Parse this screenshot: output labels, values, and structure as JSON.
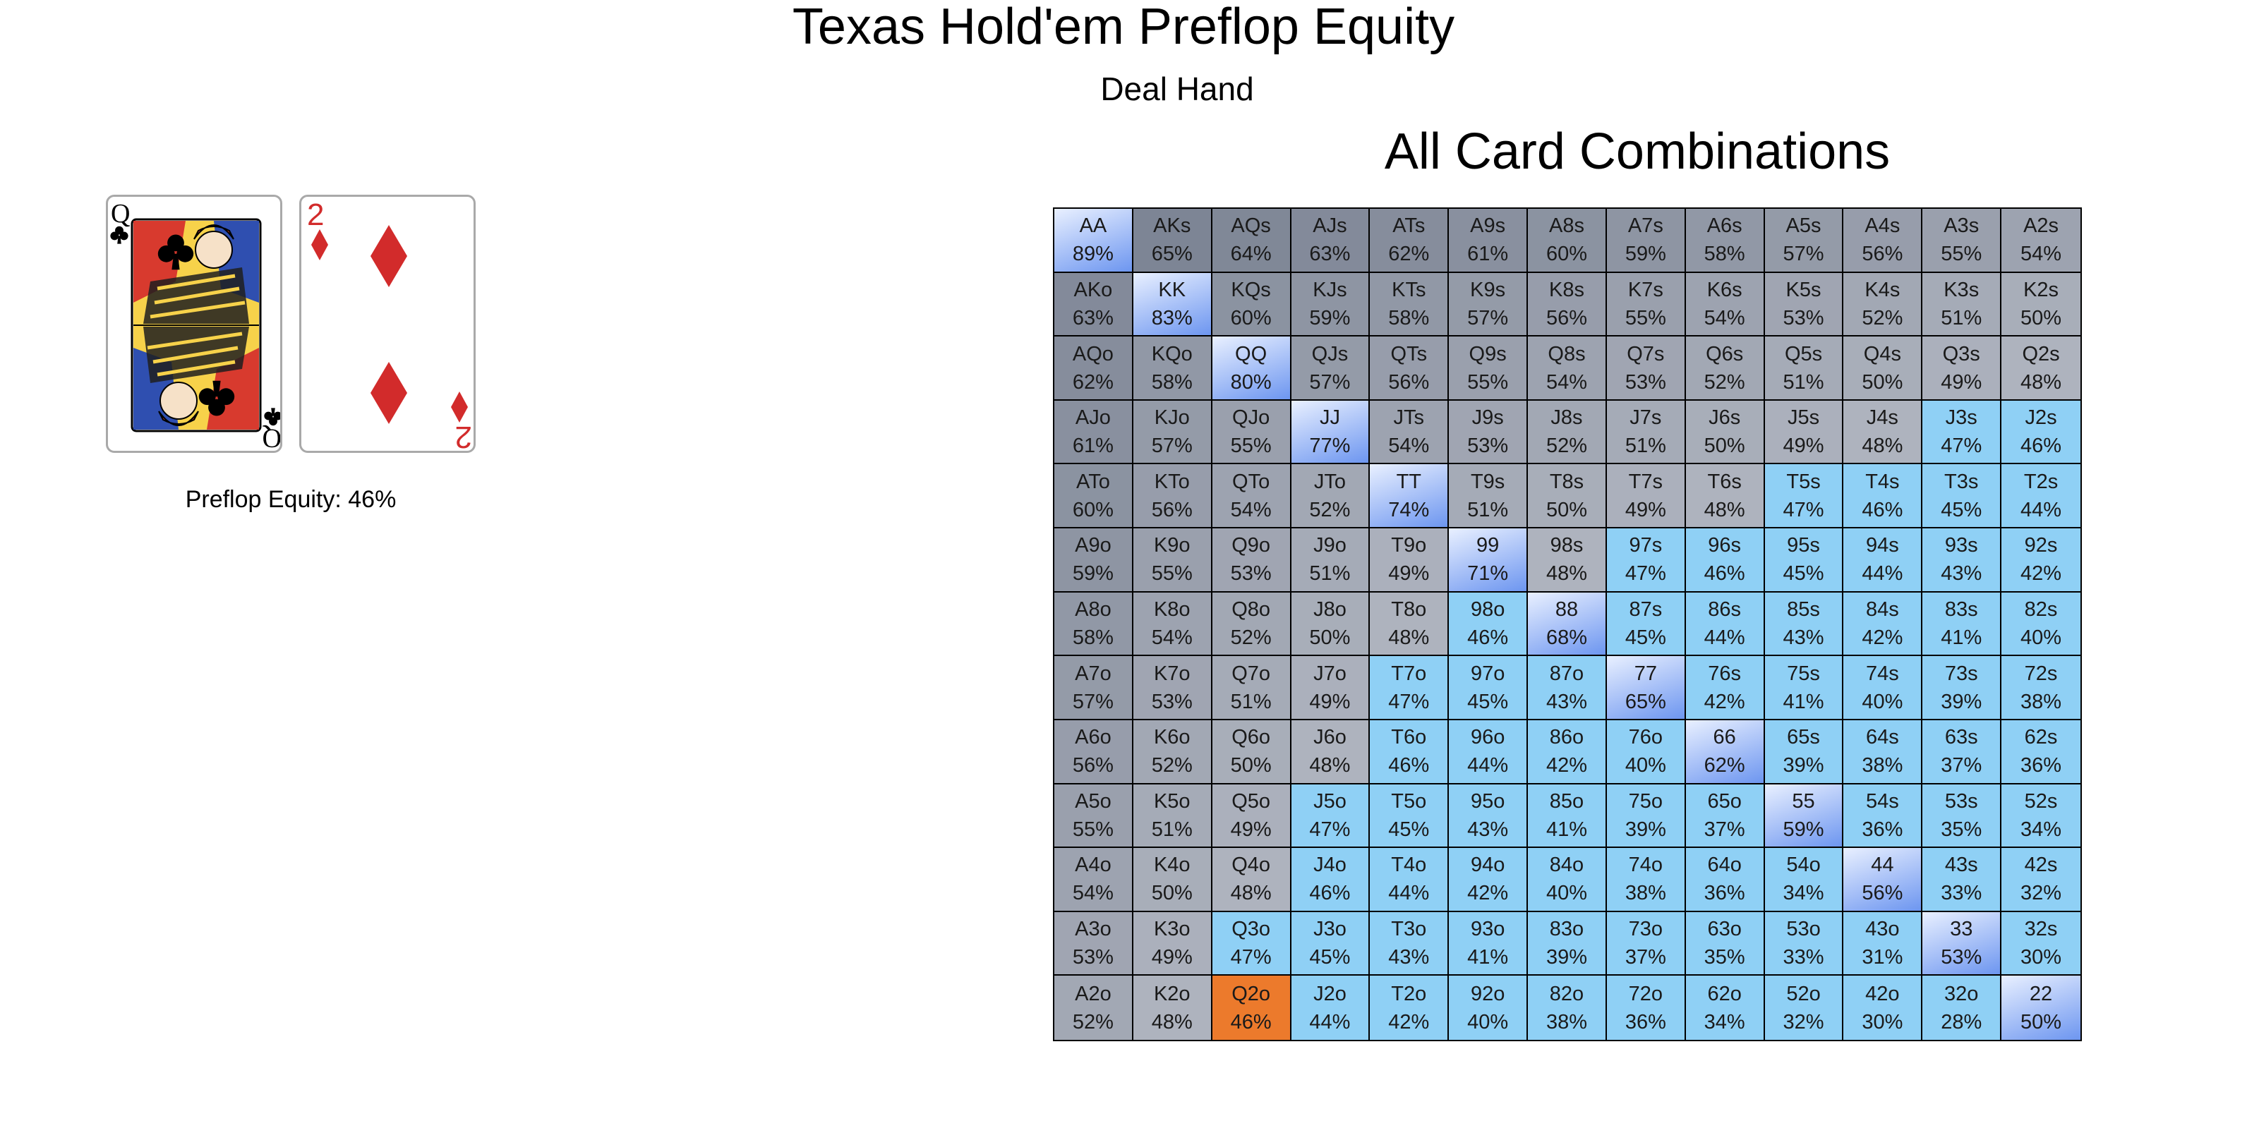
{
  "title": "Texas Hold'em Preflop Equity",
  "deal_button_label": "Deal Hand",
  "hand": {
    "cards": [
      {
        "rank": "Q",
        "suit": "clubs",
        "suit_icon": "club-icon",
        "color": "#000000"
      },
      {
        "rank": "2",
        "suit": "diamonds",
        "suit_icon": "diamond-icon",
        "color": "#d22b2b"
      }
    ],
    "equity_text": "Preflop Equity: 46%"
  },
  "grid_title": "All Card Combinations",
  "colors": {
    "suited_cold": "#7d8595",
    "offsuit_mid": "#aeb3be",
    "pair_highlight": "#6d96f0",
    "weak_hand": "#8fd0f5",
    "current_hand": "#ec7a2c"
  },
  "selected_hand": "Q2o",
  "grid": [
    [
      [
        "AA",
        "89%"
      ],
      [
        "AKs",
        "65%"
      ],
      [
        "AQs",
        "64%"
      ],
      [
        "AJs",
        "63%"
      ],
      [
        "ATs",
        "62%"
      ],
      [
        "A9s",
        "61%"
      ],
      [
        "A8s",
        "60%"
      ],
      [
        "A7s",
        "59%"
      ],
      [
        "A6s",
        "58%"
      ],
      [
        "A5s",
        "57%"
      ],
      [
        "A4s",
        "56%"
      ],
      [
        "A3s",
        "55%"
      ],
      [
        "A2s",
        "54%"
      ]
    ],
    [
      [
        "AKo",
        "63%"
      ],
      [
        "KK",
        "83%"
      ],
      [
        "KQs",
        "60%"
      ],
      [
        "KJs",
        "59%"
      ],
      [
        "KTs",
        "58%"
      ],
      [
        "K9s",
        "57%"
      ],
      [
        "K8s",
        "56%"
      ],
      [
        "K7s",
        "55%"
      ],
      [
        "K6s",
        "54%"
      ],
      [
        "K5s",
        "53%"
      ],
      [
        "K4s",
        "52%"
      ],
      [
        "K3s",
        "51%"
      ],
      [
        "K2s",
        "50%"
      ]
    ],
    [
      [
        "AQo",
        "62%"
      ],
      [
        "KQo",
        "58%"
      ],
      [
        "QQ",
        "80%"
      ],
      [
        "QJs",
        "57%"
      ],
      [
        "QTs",
        "56%"
      ],
      [
        "Q9s",
        "55%"
      ],
      [
        "Q8s",
        "54%"
      ],
      [
        "Q7s",
        "53%"
      ],
      [
        "Q6s",
        "52%"
      ],
      [
        "Q5s",
        "51%"
      ],
      [
        "Q4s",
        "50%"
      ],
      [
        "Q3s",
        "49%"
      ],
      [
        "Q2s",
        "48%"
      ]
    ],
    [
      [
        "AJo",
        "61%"
      ],
      [
        "KJo",
        "57%"
      ],
      [
        "QJo",
        "55%"
      ],
      [
        "JJ",
        "77%"
      ],
      [
        "JTs",
        "54%"
      ],
      [
        "J9s",
        "53%"
      ],
      [
        "J8s",
        "52%"
      ],
      [
        "J7s",
        "51%"
      ],
      [
        "J6s",
        "50%"
      ],
      [
        "J5s",
        "49%"
      ],
      [
        "J4s",
        "48%"
      ],
      [
        "J3s",
        "47%"
      ],
      [
        "J2s",
        "46%"
      ]
    ],
    [
      [
        "ATo",
        "60%"
      ],
      [
        "KTo",
        "56%"
      ],
      [
        "QTo",
        "54%"
      ],
      [
        "JTo",
        "52%"
      ],
      [
        "TT",
        "74%"
      ],
      [
        "T9s",
        "51%"
      ],
      [
        "T8s",
        "50%"
      ],
      [
        "T7s",
        "49%"
      ],
      [
        "T6s",
        "48%"
      ],
      [
        "T5s",
        "47%"
      ],
      [
        "T4s",
        "46%"
      ],
      [
        "T3s",
        "45%"
      ],
      [
        "T2s",
        "44%"
      ]
    ],
    [
      [
        "A9o",
        "59%"
      ],
      [
        "K9o",
        "55%"
      ],
      [
        "Q9o",
        "53%"
      ],
      [
        "J9o",
        "51%"
      ],
      [
        "T9o",
        "49%"
      ],
      [
        "99",
        "71%"
      ],
      [
        "98s",
        "48%"
      ],
      [
        "97s",
        "47%"
      ],
      [
        "96s",
        "46%"
      ],
      [
        "95s",
        "45%"
      ],
      [
        "94s",
        "44%"
      ],
      [
        "93s",
        "43%"
      ],
      [
        "92s",
        "42%"
      ]
    ],
    [
      [
        "A8o",
        "58%"
      ],
      [
        "K8o",
        "54%"
      ],
      [
        "Q8o",
        "52%"
      ],
      [
        "J8o",
        "50%"
      ],
      [
        "T8o",
        "48%"
      ],
      [
        "98o",
        "46%"
      ],
      [
        "88",
        "68%"
      ],
      [
        "87s",
        "45%"
      ],
      [
        "86s",
        "44%"
      ],
      [
        "85s",
        "43%"
      ],
      [
        "84s",
        "42%"
      ],
      [
        "83s",
        "41%"
      ],
      [
        "82s",
        "40%"
      ]
    ],
    [
      [
        "A7o",
        "57%"
      ],
      [
        "K7o",
        "53%"
      ],
      [
        "Q7o",
        "51%"
      ],
      [
        "J7o",
        "49%"
      ],
      [
        "T7o",
        "47%"
      ],
      [
        "97o",
        "45%"
      ],
      [
        "87o",
        "43%"
      ],
      [
        "77",
        "65%"
      ],
      [
        "76s",
        "42%"
      ],
      [
        "75s",
        "41%"
      ],
      [
        "74s",
        "40%"
      ],
      [
        "73s",
        "39%"
      ],
      [
        "72s",
        "38%"
      ]
    ],
    [
      [
        "A6o",
        "56%"
      ],
      [
        "K6o",
        "52%"
      ],
      [
        "Q6o",
        "50%"
      ],
      [
        "J6o",
        "48%"
      ],
      [
        "T6o",
        "46%"
      ],
      [
        "96o",
        "44%"
      ],
      [
        "86o",
        "42%"
      ],
      [
        "76o",
        "40%"
      ],
      [
        "66",
        "62%"
      ],
      [
        "65s",
        "39%"
      ],
      [
        "64s",
        "38%"
      ],
      [
        "63s",
        "37%"
      ],
      [
        "62s",
        "36%"
      ]
    ],
    [
      [
        "A5o",
        "55%"
      ],
      [
        "K5o",
        "51%"
      ],
      [
        "Q5o",
        "49%"
      ],
      [
        "J5o",
        "47%"
      ],
      [
        "T5o",
        "45%"
      ],
      [
        "95o",
        "43%"
      ],
      [
        "85o",
        "41%"
      ],
      [
        "75o",
        "39%"
      ],
      [
        "65o",
        "37%"
      ],
      [
        "55",
        "59%"
      ],
      [
        "54s",
        "36%"
      ],
      [
        "53s",
        "35%"
      ],
      [
        "52s",
        "34%"
      ]
    ],
    [
      [
        "A4o",
        "54%"
      ],
      [
        "K4o",
        "50%"
      ],
      [
        "Q4o",
        "48%"
      ],
      [
        "J4o",
        "46%"
      ],
      [
        "T4o",
        "44%"
      ],
      [
        "94o",
        "42%"
      ],
      [
        "84o",
        "40%"
      ],
      [
        "74o",
        "38%"
      ],
      [
        "64o",
        "36%"
      ],
      [
        "54o",
        "34%"
      ],
      [
        "44",
        "56%"
      ],
      [
        "43s",
        "33%"
      ],
      [
        "42s",
        "32%"
      ]
    ],
    [
      [
        "A3o",
        "53%"
      ],
      [
        "K3o",
        "49%"
      ],
      [
        "Q3o",
        "47%"
      ],
      [
        "J3o",
        "45%"
      ],
      [
        "T3o",
        "43%"
      ],
      [
        "93o",
        "41%"
      ],
      [
        "83o",
        "39%"
      ],
      [
        "73o",
        "37%"
      ],
      [
        "63o",
        "35%"
      ],
      [
        "53o",
        "33%"
      ],
      [
        "43o",
        "31%"
      ],
      [
        "33",
        "53%"
      ],
      [
        "32s",
        "30%"
      ]
    ],
    [
      [
        "A2o",
        "52%"
      ],
      [
        "K2o",
        "48%"
      ],
      [
        "Q2o",
        "46%"
      ],
      [
        "J2o",
        "44%"
      ],
      [
        "T2o",
        "42%"
      ],
      [
        "92o",
        "40%"
      ],
      [
        "82o",
        "38%"
      ],
      [
        "72o",
        "36%"
      ],
      [
        "62o",
        "34%"
      ],
      [
        "52o",
        "32%"
      ],
      [
        "42o",
        "30%"
      ],
      [
        "32o",
        "28%"
      ],
      [
        "22",
        "50%"
      ]
    ]
  ]
}
